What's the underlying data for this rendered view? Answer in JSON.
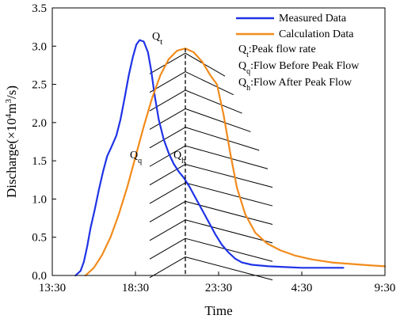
{
  "chart_data": {
    "type": "line",
    "xlabel": "Time",
    "ylabel_parts": {
      "main": "Discharge(×10",
      "exp1": "4",
      "mid": "m",
      "exp2": "3",
      "end": "/s)"
    },
    "x_ticks": [
      "13:30",
      "18:30",
      "23:30",
      "4:30",
      "9:30"
    ],
    "y_ticks": [
      "0.0",
      "0.5",
      "1.0",
      "1.5",
      "2.0",
      "2.5",
      "3.0",
      "3.5"
    ],
    "x_range_hours": [
      0,
      20
    ],
    "ylim": [
      0,
      3.5
    ],
    "grid": false,
    "legend_position": "top-right",
    "series": [
      {
        "name": "Measured Data",
        "color": "#1f33e6",
        "x_hours": [
          1.4,
          1.7,
          1.9,
          2.1,
          2.3,
          2.55,
          2.8,
          3.05,
          3.3,
          3.55,
          3.85,
          4.1,
          4.35,
          4.6,
          4.85,
          5.05,
          5.25,
          5.5,
          5.75,
          5.95,
          6.15,
          6.4,
          6.7,
          7.0,
          7.3,
          7.6,
          7.9,
          8.25,
          8.6,
          9.0,
          9.4,
          9.8,
          10.2,
          10.6,
          11.0,
          11.4,
          12.0,
          13.0,
          14.0,
          15.0,
          16.0,
          17.0,
          17.5
        ],
        "values": [
          0.0,
          0.06,
          0.18,
          0.38,
          0.62,
          0.86,
          1.12,
          1.36,
          1.56,
          1.68,
          1.83,
          2.04,
          2.32,
          2.62,
          2.86,
          3.02,
          3.08,
          3.06,
          2.92,
          2.68,
          2.36,
          2.04,
          1.78,
          1.6,
          1.46,
          1.36,
          1.28,
          1.16,
          1.02,
          0.86,
          0.7,
          0.54,
          0.4,
          0.3,
          0.22,
          0.17,
          0.14,
          0.12,
          0.11,
          0.1,
          0.1,
          0.1,
          0.1
        ]
      },
      {
        "name": "Calculation Data",
        "color": "#f28b1c",
        "x_hours": [
          2.0,
          2.5,
          3.0,
          3.5,
          4.0,
          4.5,
          5.0,
          5.5,
          6.0,
          6.5,
          7.0,
          7.5,
          8.0,
          8.5,
          9.0,
          9.5,
          9.9,
          10.3,
          10.7,
          11.1,
          11.6,
          12.2,
          12.9,
          13.7,
          14.6,
          15.6,
          16.8,
          18.0,
          19.2,
          20.0
        ],
        "values": [
          0.0,
          0.1,
          0.27,
          0.5,
          0.8,
          1.15,
          1.55,
          1.95,
          2.32,
          2.62,
          2.83,
          2.94,
          2.97,
          2.92,
          2.8,
          2.62,
          2.5,
          2.1,
          1.6,
          1.15,
          0.8,
          0.56,
          0.42,
          0.33,
          0.26,
          0.21,
          0.17,
          0.15,
          0.13,
          0.12
        ]
      }
    ],
    "peak_marker_x_hours": 8.0,
    "peak_marker_top": 2.97,
    "annotations": {
      "qt": {
        "base": "Q",
        "sub": "t"
      },
      "qq": {
        "base": "Q",
        "sub": "q"
      },
      "qh": {
        "base": "Q",
        "sub": "h"
      }
    },
    "legend_notes": [
      {
        "base": "Q",
        "sub": "t",
        "text": ":Peak flow rate"
      },
      {
        "base": "Q",
        "sub": "q",
        "text": ":Flow Before Peak Flow"
      },
      {
        "base": "Q",
        "sub": "h",
        "text": ":Flow After Peak Flow"
      }
    ]
  }
}
